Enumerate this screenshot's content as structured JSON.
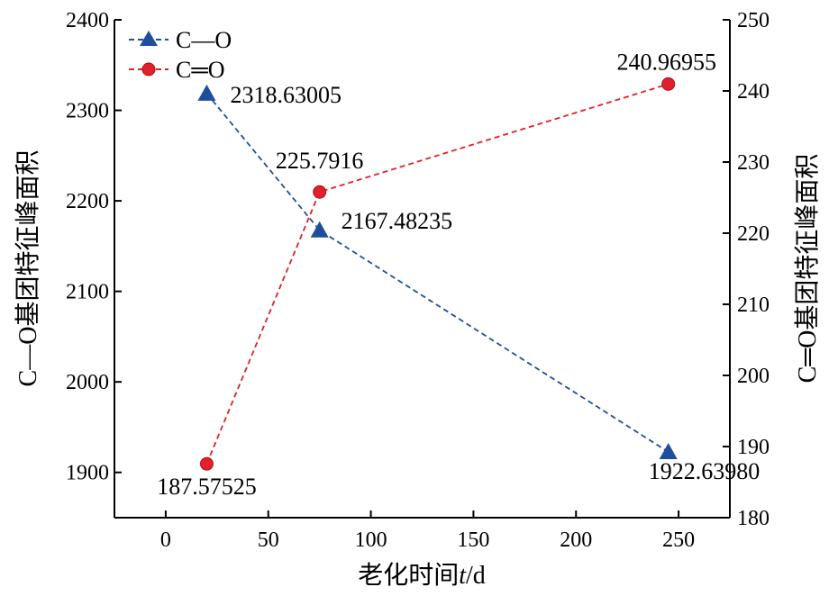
{
  "chart_data": {
    "type": "line",
    "xlabel_main": "老化时间",
    "xlabel_var": "t",
    "xlabel_unit": "/d",
    "ylabel_left": "C—O基团特征峰面积",
    "ylabel_right": "C═O基团特征峰面积",
    "xlim": [
      -25,
      275
    ],
    "ylim_left": [
      1850,
      2400
    ],
    "ylim_right": [
      180,
      250
    ],
    "xticks": [
      0,
      50,
      100,
      150,
      200,
      250
    ],
    "yticks_left": [
      1900,
      2000,
      2100,
      2200,
      2300,
      2400
    ],
    "yticks_right": [
      180,
      190,
      200,
      210,
      220,
      230,
      240,
      250
    ],
    "legend_position": "top-left",
    "series": [
      {
        "name": "C—O",
        "axis": "left",
        "marker": "triangle",
        "color": "#1f4e9c",
        "x": [
          20,
          75,
          245
        ],
        "y": [
          2318.63005,
          2167.48235,
          1922.6398
        ],
        "labels": [
          "2318.63005",
          "2167.48235",
          "1922.63980"
        ]
      },
      {
        "name": "C═O",
        "axis": "right",
        "marker": "circle",
        "color": "#e0202a",
        "x": [
          20,
          75,
          245
        ],
        "y": [
          187.57525,
          225.7916,
          240.96955
        ],
        "labels": [
          "187.57525",
          "225.7916",
          "240.96955"
        ]
      }
    ]
  }
}
